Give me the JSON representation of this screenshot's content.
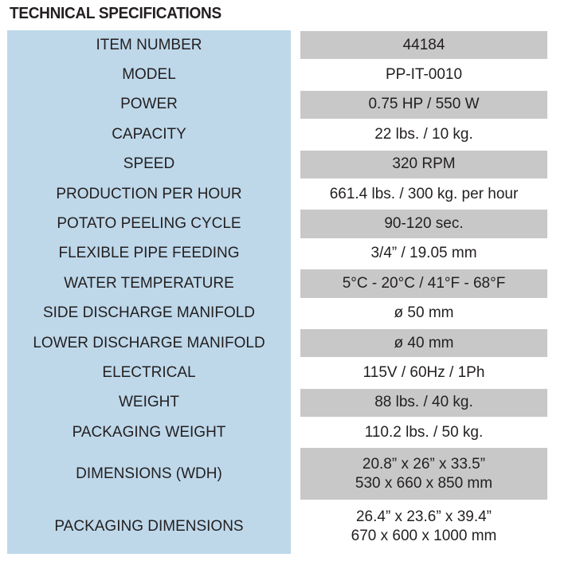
{
  "title": "TECHNICAL SPECIFICATIONS",
  "colors": {
    "label_bg": "#bed8ea",
    "value_stripe": "#c8c8c9"
  },
  "rows": [
    {
      "label": "ITEM NUMBER",
      "value": [
        "44184"
      ]
    },
    {
      "label": "MODEL",
      "value": [
        "PP-IT-0010"
      ]
    },
    {
      "label": "POWER",
      "value": [
        "0.75 HP / 550 W"
      ]
    },
    {
      "label": "CAPACITY",
      "value": [
        "22 lbs. / 10 kg."
      ]
    },
    {
      "label": "SPEED",
      "value": [
        "320 RPM"
      ]
    },
    {
      "label": "PRODUCTION PER HOUR",
      "value": [
        "661.4 lbs. / 300 kg. per hour"
      ]
    },
    {
      "label": "POTATO PEELING CYCLE",
      "value": [
        "90-120 sec."
      ]
    },
    {
      "label": "FLEXIBLE PIPE FEEDING",
      "value": [
        "3/4” / 19.05 mm"
      ]
    },
    {
      "label": "WATER TEMPERATURE",
      "value": [
        "5°C - 20°C / 41°F - 68°F"
      ]
    },
    {
      "label": "SIDE DISCHARGE MANIFOLD",
      "value": [
        "ø 50 mm"
      ]
    },
    {
      "label": "LOWER DISCHARGE MANIFOLD",
      "value": [
        "ø 40 mm"
      ]
    },
    {
      "label": "ELECTRICAL",
      "value": [
        "115V / 60Hz / 1Ph"
      ]
    },
    {
      "label": "WEIGHT",
      "value": [
        "88 lbs. / 40 kg."
      ]
    },
    {
      "label": "PACKAGING WEIGHT",
      "value": [
        "110.2 lbs. / 50 kg."
      ]
    },
    {
      "label": "DIMENSIONS (WDH)",
      "value": [
        "20.8” x 26” x 33.5”",
        "530 x 660 x 850 mm"
      ]
    },
    {
      "label": "PACKAGING DIMENSIONS",
      "value": [
        "26.4” x 23.6” x 39.4”",
        "670 x 600 x 1000 mm"
      ]
    }
  ]
}
